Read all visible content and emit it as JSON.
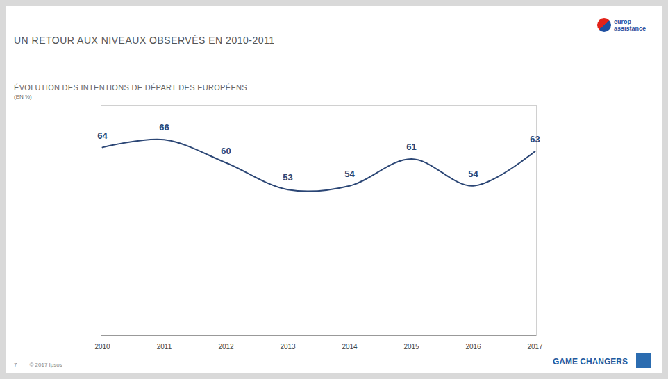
{
  "chart_data": {
    "type": "line",
    "title": "UN RETOUR AUX NIVEAUX OBSERVÉS EN 2010-2011",
    "subtitle": "ÉVOLUTION DES INTENTIONS DE DÉPART DES EUROPÉENS",
    "y_label": "(EN %)",
    "categories": [
      "2010",
      "2011",
      "2012",
      "2013",
      "2014",
      "2015",
      "2016",
      "2017"
    ],
    "values": [
      64,
      66,
      60,
      53,
      54,
      61,
      54,
      63
    ],
    "color": "#2b4675",
    "ylim": [
      15,
      75
    ],
    "yticks": [],
    "grid": false,
    "data_labels": true,
    "tick_labels": "x"
  },
  "logo": "europ assistance",
  "footer": {
    "brand": "GAME CHANGERS",
    "copyright": "© 2017 Ipsos",
    "page": "7"
  }
}
